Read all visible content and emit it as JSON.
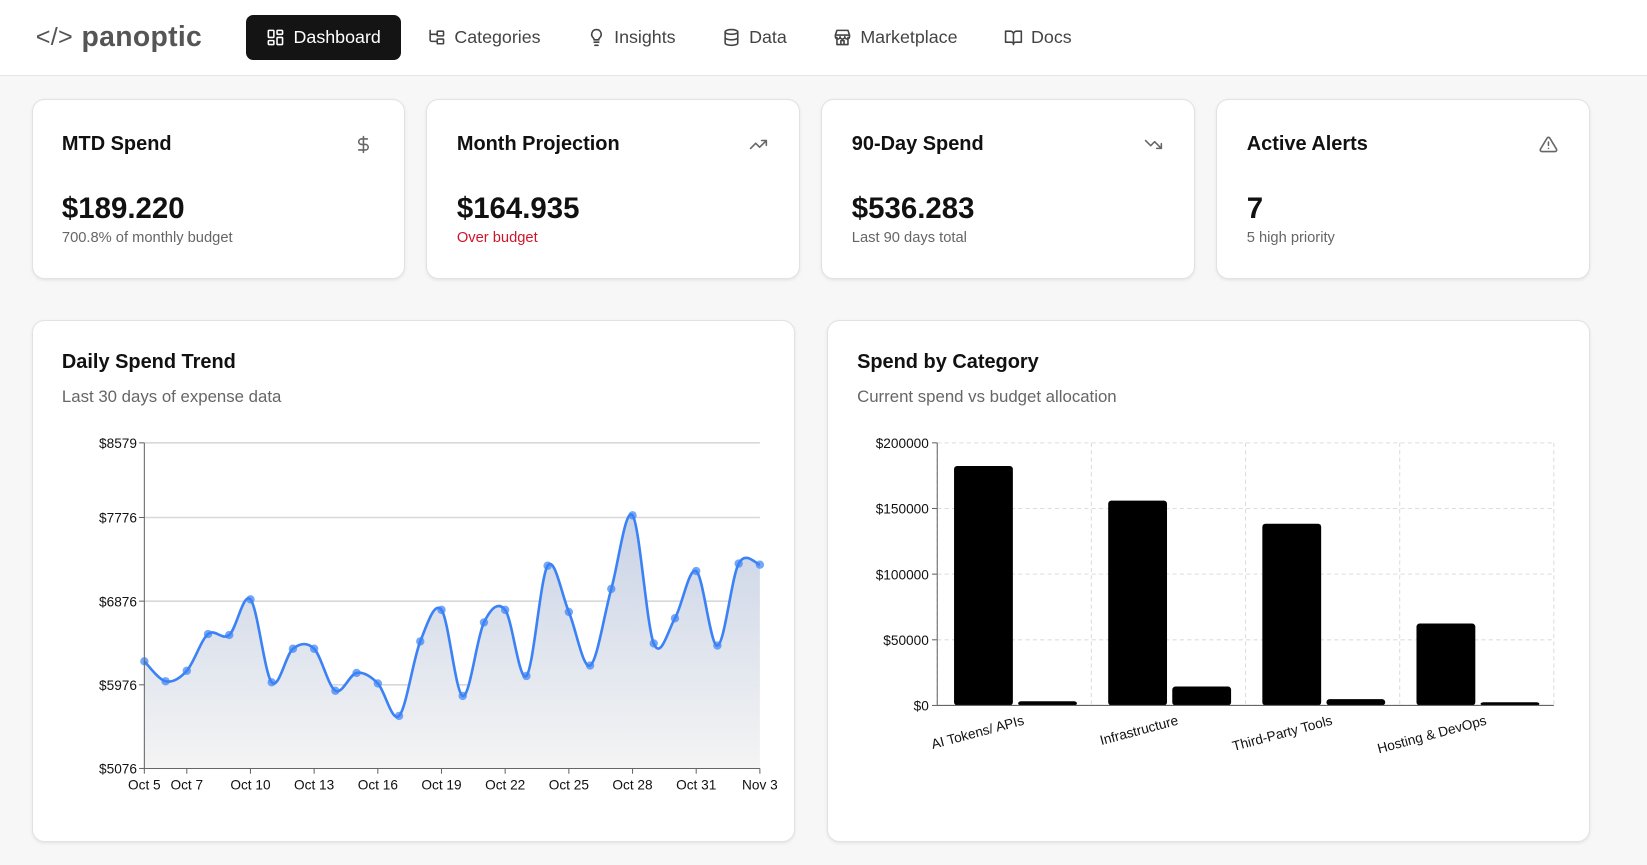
{
  "nav": {
    "logo_code": "</>",
    "logo_text": "panoptic",
    "tabs": [
      {
        "label": "Dashboard",
        "icon": "dashboard-grid-icon",
        "active": true
      },
      {
        "label": "Categories",
        "icon": "category-tree-icon"
      },
      {
        "label": "Insights",
        "icon": "lightbulb-icon"
      },
      {
        "label": "Data",
        "icon": "database-icon"
      },
      {
        "label": "Marketplace",
        "icon": "store-icon"
      },
      {
        "label": "Docs",
        "icon": "book-icon"
      }
    ]
  },
  "stats": [
    {
      "title": "MTD Spend",
      "value": "$189.220",
      "sub": "700.8% of monthly budget",
      "icon": "dollar-icon"
    },
    {
      "title": "Month Projection",
      "value": "$164.935",
      "sub": "Over budget",
      "icon": "trending-up-icon",
      "sub_color": "#d0142c"
    },
    {
      "title": "90-Day Spend",
      "value": "$536.283",
      "sub": "Last 90 days total",
      "icon": "trending-down-icon"
    },
    {
      "title": "Active Alerts",
      "value": "7",
      "sub": "5 high priority",
      "icon": "alert-triangle-icon"
    }
  ],
  "trend": {
    "title": "Daily Spend Trend",
    "subtitle": "Last 30 days of expense data"
  },
  "category": {
    "title": "Spend by Category",
    "subtitle": "Current spend vs budget allocation"
  },
  "chart_data": [
    {
      "type": "area",
      "line_color": "#3b82f6",
      "x": [
        "Oct 5",
        "Oct 6",
        "Oct 7",
        "Oct 8",
        "Oct 9",
        "Oct 10",
        "Oct 11",
        "Oct 12",
        "Oct 13",
        "Oct 14",
        "Oct 15",
        "Oct 16",
        "Oct 17",
        "Oct 18",
        "Oct 19",
        "Oct 20",
        "Oct 21",
        "Oct 22",
        "Oct 23",
        "Oct 24",
        "Oct 25",
        "Oct 26",
        "Oct 27",
        "Oct 28",
        "Oct 29",
        "Oct 30",
        "Oct 31",
        "Nov 1",
        "Nov 2",
        "Nov 3"
      ],
      "x_ticks": [
        "Oct 5",
        "Oct 7",
        "Oct 10",
        "Oct 13",
        "Oct 16",
        "Oct 19",
        "Oct 22",
        "Oct 25",
        "Oct 28",
        "Oct 31",
        "Nov 3"
      ],
      "values": [
        6229,
        6014,
        6127,
        6522,
        6511,
        6895,
        6003,
        6364,
        6364,
        5912,
        6104,
        5991,
        5641,
        6443,
        6782,
        5856,
        6647,
        6782,
        6071,
        7257,
        6760,
        6183,
        7008,
        7799,
        6421,
        6692,
        7200,
        6398,
        7280,
        7268
      ],
      "y_ticks": [
        "$8579",
        "$7776",
        "$6876",
        "$5976",
        "$5076"
      ],
      "ylim": [
        5076,
        8579
      ],
      "grid": "horizontal"
    },
    {
      "type": "bar",
      "categories": [
        "AI Tokens/ APIs",
        "Infrastructure",
        "Third-Party Tools",
        "Hosting & DevOps"
      ],
      "series": [
        {
          "values": [
            182400,
            156000,
            138400,
            62400
          ],
          "color": "#000000"
        },
        {
          "values": [
            3200,
            14400,
            4800,
            2400
          ],
          "color": "#000000"
        }
      ],
      "y_ticks": [
        "$200000",
        "$150000",
        "$100000",
        "$50000",
        "$0"
      ],
      "ylim": [
        0,
        200000
      ],
      "grid": "dashed"
    }
  ]
}
